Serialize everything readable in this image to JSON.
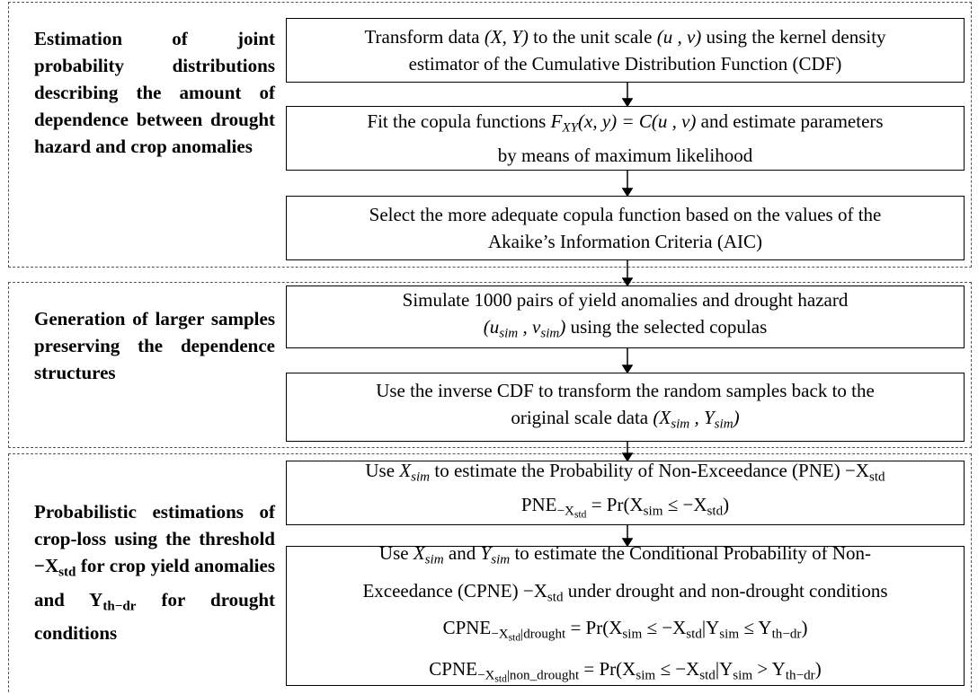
{
  "sections": [
    {
      "label": [
        "Estimation of joint probability distributions describing the amount of dependence between drought hazard and crop anomalies"
      ],
      "steps": [
        {
          "lines": [
            [
              "Transform data ",
              {
                "text": "(X, Y)",
                "style": "italic"
              },
              " to the unit scale ",
              {
                "text": "(u , v)",
                "style": "italic"
              },
              " using the kernel density"
            ],
            [
              "estimator of the Cumulative Distribution Function (CDF)"
            ]
          ]
        },
        {
          "lines": [
            [
              "Fit the copula functions ",
              {
                "text": "F",
                "style": "italic"
              },
              {
                "text": "XY",
                "style": "italic-sub"
              },
              {
                "text": "(x, y) = C(u , v)",
                "style": "italic"
              },
              " and estimate parameters"
            ],
            [
              "by means of maximum likelihood"
            ]
          ]
        },
        {
          "lines": [
            [
              "Select the more adequate copula function based on the values of the"
            ],
            [
              "Akaike’s Information Criteria (AIC)"
            ]
          ]
        }
      ]
    },
    {
      "label": [
        "Generation of larger samples preserving the dependence structures"
      ],
      "steps": [
        {
          "lines": [
            [
              "Simulate 1000 pairs of yield anomalies and drought hazard"
            ],
            [
              {
                "text": "(u",
                "style": "italic"
              },
              {
                "text": "sim",
                "style": "italic-sub"
              },
              {
                "text": " , v",
                "style": "italic"
              },
              {
                "text": "sim",
                "style": "italic-sub"
              },
              {
                "text": ")",
                "style": "italic"
              },
              " using the selected copulas"
            ]
          ]
        },
        {
          "lines": [
            [
              "Use the inverse CDF to transform the random samples back to the"
            ],
            [
              "original scale data ",
              {
                "text": "(X",
                "style": "italic"
              },
              {
                "text": "sim",
                "style": "italic-sub"
              },
              {
                "text": " , Y",
                "style": "italic"
              },
              {
                "text": "sim",
                "style": "italic-sub"
              },
              {
                "text": ")",
                "style": "italic"
              }
            ]
          ]
        }
      ]
    },
    {
      "label": [
        "Probabilistic estimations of crop-loss using the threshold −X",
        {
          "text": "std",
          "style": "sub"
        },
        " for crop yield anomalies and Y",
        {
          "text": "th−dr",
          "style": "sub"
        },
        " for drought conditions"
      ],
      "steps": [
        {
          "lines": [
            [
              "Use ",
              {
                "text": "X",
                "style": "italic"
              },
              {
                "text": "sim",
                "style": "italic-sub"
              },
              " to estimate the Probability of Non-Exceedance (PNE) −X",
              {
                "text": "std",
                "style": "sub"
              }
            ],
            [
              "PNE",
              {
                "text": "−X",
                "style": "sub"
              },
              {
                "text": "std",
                "style": "sub2"
              },
              " = Pr(X",
              {
                "text": "sim",
                "style": "sub"
              },
              " ≤ −X",
              {
                "text": "std",
                "style": "sub"
              },
              ")"
            ]
          ]
        },
        {
          "lines": [
            [
              "Use ",
              {
                "text": "X",
                "style": "italic"
              },
              {
                "text": "sim",
                "style": "italic-sub"
              },
              " and ",
              {
                "text": "Y",
                "style": "italic"
              },
              {
                "text": "sim",
                "style": "italic-sub"
              },
              " to estimate the Conditional Probability of Non-"
            ],
            [
              "Exceedance (CPNE) −X",
              {
                "text": "std",
                "style": "sub"
              },
              " under drought and non-drought conditions"
            ],
            [
              "CPNE",
              {
                "text": "−X",
                "style": "sub"
              },
              {
                "text": "std",
                "style": "sub2"
              },
              {
                "text": "|drought",
                "style": "sub"
              },
              " = Pr(X",
              {
                "text": "sim",
                "style": "sub"
              },
              " ≤ −X",
              {
                "text": "std",
                "style": "sub"
              },
              "|Y",
              {
                "text": "sim",
                "style": "sub"
              },
              " ≤ Y",
              {
                "text": "th−dr",
                "style": "sub"
              },
              ")"
            ],
            [
              "CPNE",
              {
                "text": "−X",
                "style": "sub"
              },
              {
                "text": "std",
                "style": "sub2"
              },
              {
                "text": "|non_drought",
                "style": "sub"
              },
              " = Pr(X",
              {
                "text": "sim",
                "style": "sub"
              },
              " ≤ −X",
              {
                "text": "std",
                "style": "sub"
              },
              "|Y",
              {
                "text": "sim",
                "style": "sub"
              },
              " > Y",
              {
                "text": "th−dr",
                "style": "sub"
              },
              ")"
            ]
          ]
        }
      ]
    }
  ]
}
